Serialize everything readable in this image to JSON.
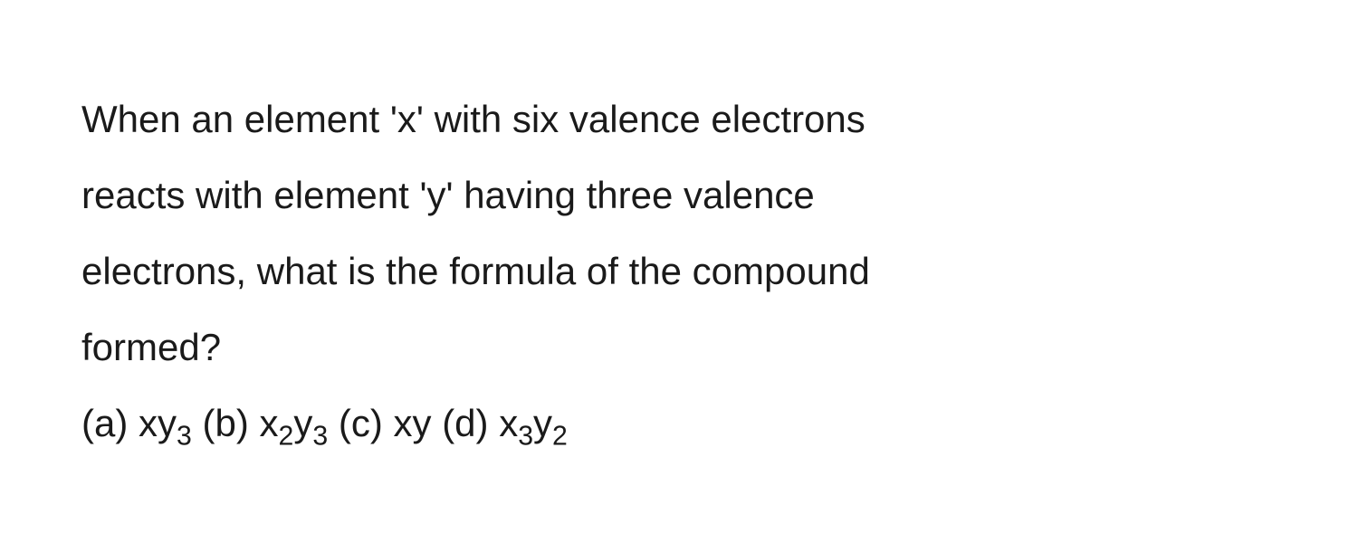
{
  "question": {
    "line1": "When an element 'x' with six valence electrons",
    "line2": "reacts with element 'y' having three valence",
    "line3": "electrons, what is the formula of the compound",
    "line4": "formed?"
  },
  "options": {
    "a": {
      "label": "(a)",
      "formula_parts": [
        "xy",
        "3"
      ]
    },
    "b": {
      "label": "(b)",
      "formula_parts": [
        "x",
        "2",
        "y",
        "3"
      ]
    },
    "c": {
      "label": "(c)",
      "formula_parts": [
        "xy"
      ]
    },
    "d": {
      "label": "(d)",
      "formula_parts": [
        "x",
        "3",
        "y",
        "2"
      ]
    }
  },
  "styling": {
    "background_color": "#ffffff",
    "text_color": "#1a1a1a",
    "font_family": "Arial, Helvetica, sans-serif",
    "question_fontsize": 42,
    "line_height": 2.0,
    "subscript_scale": 0.72,
    "padding_left": 90
  }
}
